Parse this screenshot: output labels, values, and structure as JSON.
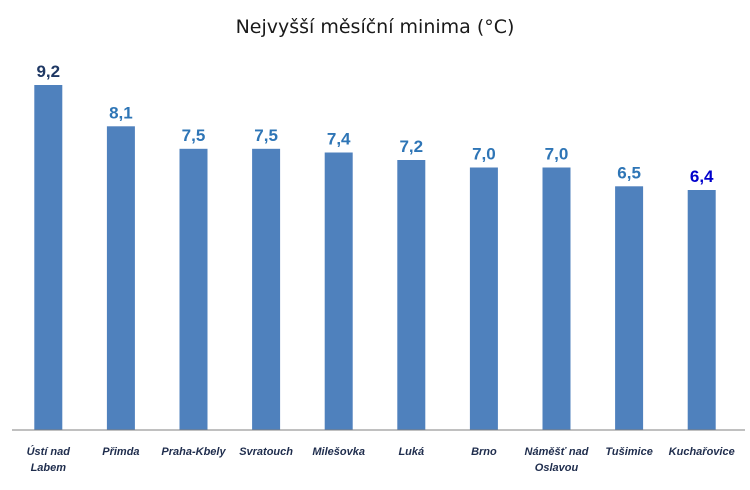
{
  "chart_data": {
    "type": "bar",
    "title": "Nejvyšší měsíční minima (°C)",
    "xlabel": "",
    "ylabel": "",
    "ylim": [
      0,
      9.2
    ],
    "grid": false,
    "categories": [
      [
        "Ústí nad",
        "Labem"
      ],
      [
        "Přimda"
      ],
      [
        "Praha-Kbely"
      ],
      [
        "Svratouch"
      ],
      [
        "Milešovka"
      ],
      [
        "Luká"
      ],
      [
        "Brno"
      ],
      [
        "Náměšť nad",
        "Oslavou"
      ],
      [
        "Tušimice"
      ],
      [
        "Kuchařovice"
      ]
    ],
    "values": [
      9.2,
      8.1,
      7.5,
      7.5,
      7.4,
      7.2,
      7.0,
      7.0,
      6.5,
      6.4
    ],
    "value_labels": [
      "9,2",
      "8,1",
      "7,5",
      "7,5",
      "7,4",
      "7,2",
      "7,0",
      "7,0",
      "6,5",
      "6,4"
    ],
    "colors": {
      "bar": "#4f81bd",
      "value_label": "#2e75b6",
      "value_label_highest": "#1f3864",
      "value_label_lowest": "#0000cc"
    }
  }
}
